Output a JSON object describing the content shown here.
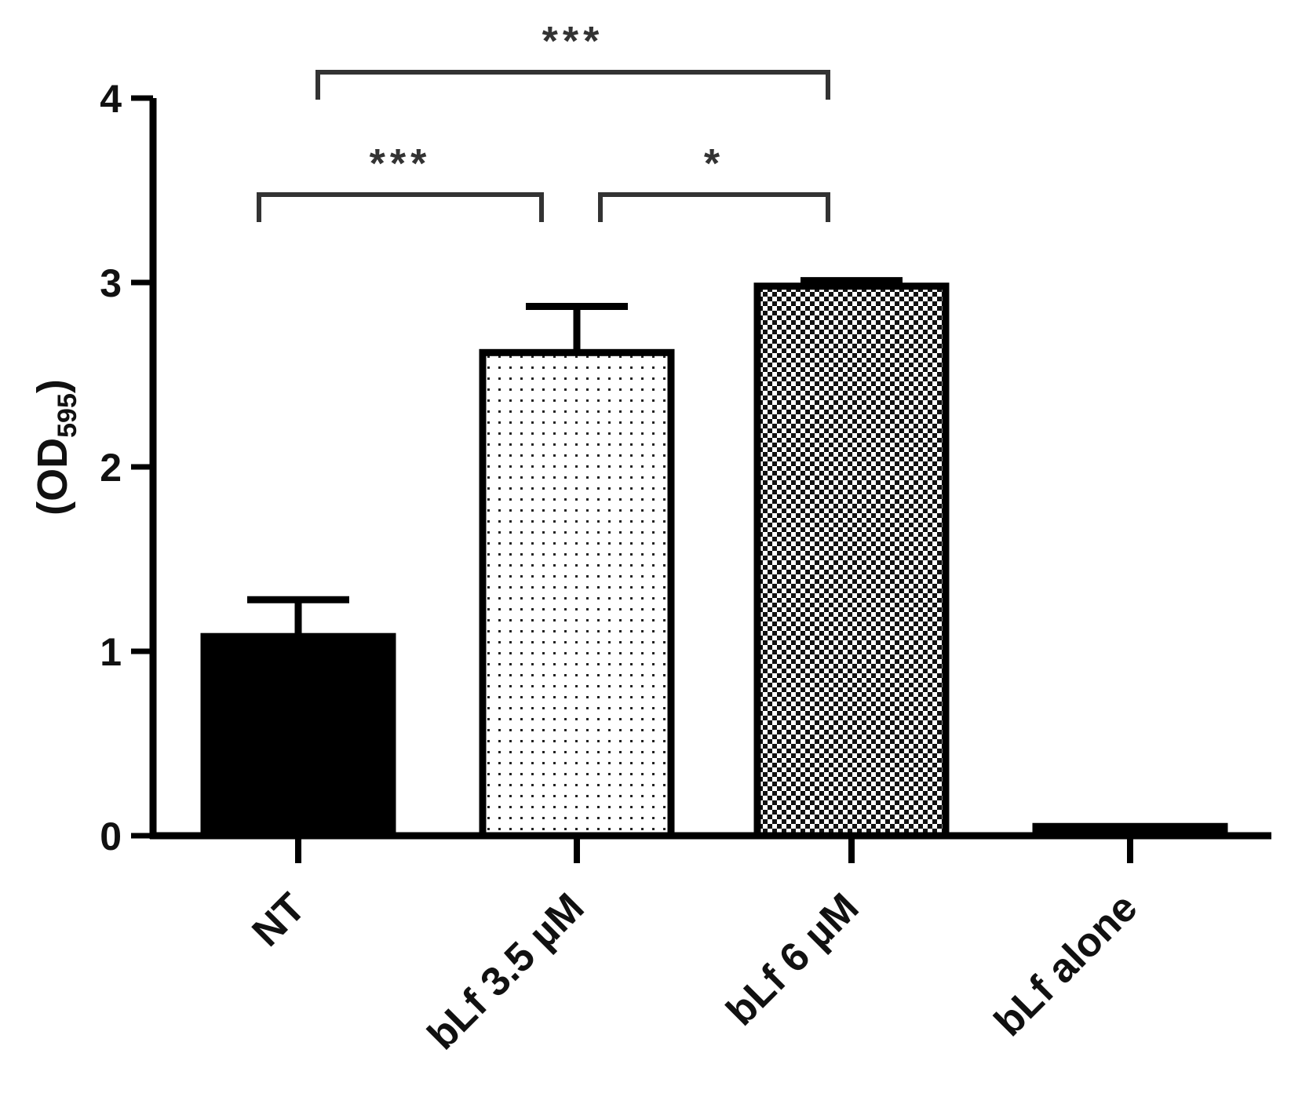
{
  "chart_data": {
    "type": "bar",
    "categories": [
      "NT",
      "bLf 3.5 µM",
      "bLf 6 µM",
      "bLf alone"
    ],
    "values": [
      1.08,
      2.62,
      2.98,
      0.05
    ],
    "errors": [
      0.2,
      0.25,
      0.03,
      0.0
    ],
    "ylabel_main": "(OD",
    "ylabel_sub": "595",
    "ylabel_close": ")",
    "ylim": [
      0,
      4
    ],
    "yticks": [
      "0",
      "1",
      "2",
      "3",
      "4"
    ],
    "bar_styles": [
      "solid",
      "dotted",
      "checkered",
      "solid"
    ],
    "bar_color": "#000000",
    "significance": [
      {
        "from": 0,
        "to": 2,
        "label": "***"
      },
      {
        "from": 0,
        "to": 1,
        "label": "***"
      },
      {
        "from": 1,
        "to": 2,
        "label": "*"
      }
    ],
    "grid": false,
    "legend": "none"
  }
}
